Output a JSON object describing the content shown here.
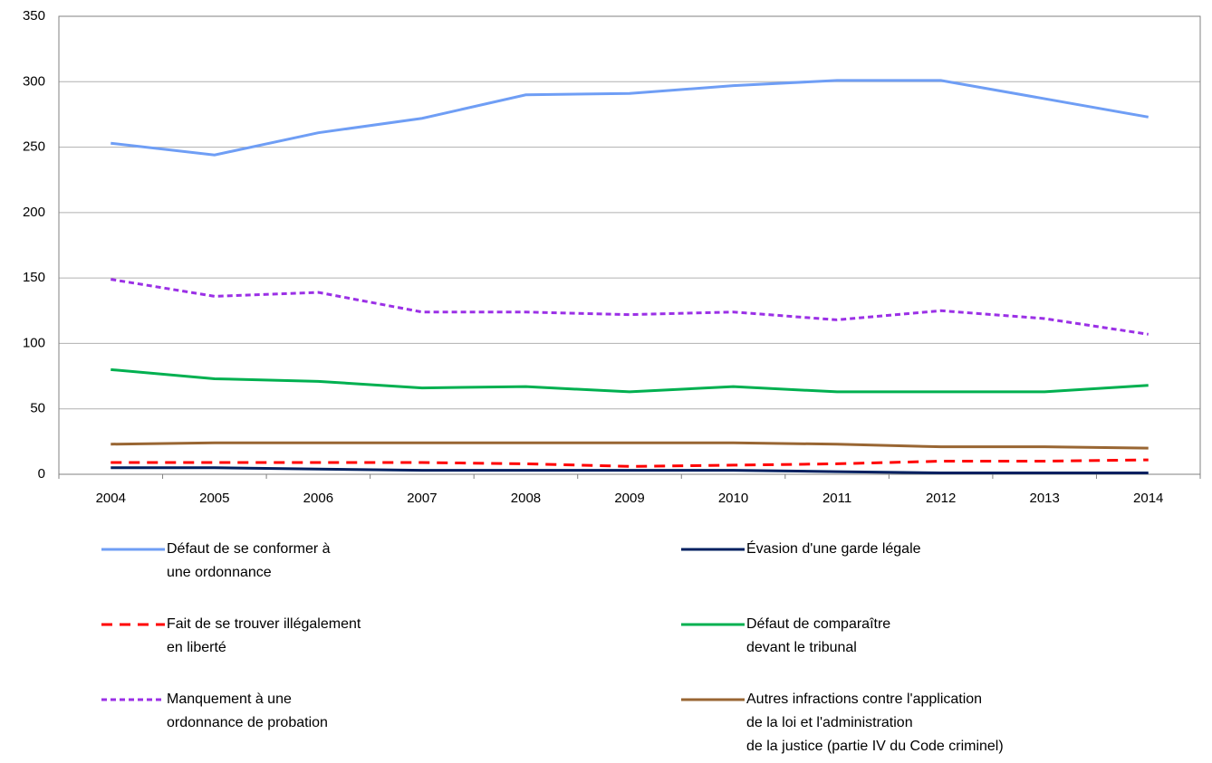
{
  "chart_data": {
    "type": "line",
    "categories": [
      "2004",
      "2005",
      "2006",
      "2007",
      "2008",
      "2009",
      "2010",
      "2011",
      "2012",
      "2013",
      "2014"
    ],
    "ylim": [
      0,
      350
    ],
    "yticks": [
      0,
      50,
      100,
      150,
      200,
      250,
      300,
      350
    ],
    "grid": true,
    "series": [
      {
        "name": "Défaut de se conformer à\nune ordonnance",
        "color": "#6f9ef5",
        "line_style": "solid",
        "values": [
          253,
          244,
          261,
          272,
          290,
          291,
          297,
          301,
          301,
          287,
          273
        ]
      },
      {
        "name": "Évasion d'une garde légale",
        "color": "#002060",
        "line_style": "solid",
        "values": [
          5,
          5,
          4,
          3,
          3,
          3,
          3,
          2,
          1,
          1,
          1
        ]
      },
      {
        "name": "Fait de se trouver illégalement\nen liberté",
        "color": "#ff0000",
        "line_style": "long-dash",
        "values": [
          9,
          9,
          9,
          9,
          8,
          6,
          7,
          8,
          10,
          10,
          11
        ]
      },
      {
        "name": "Défaut de comparaître\ndevant le tribunal",
        "color": "#00b050",
        "line_style": "solid",
        "values": [
          80,
          73,
          71,
          66,
          67,
          63,
          67,
          63,
          63,
          63,
          68
        ]
      },
      {
        "name": "Manquement à une\nordonnance de probation",
        "color": "#9b30e6",
        "line_style": "short-dash",
        "values": [
          149,
          136,
          139,
          124,
          124,
          122,
          124,
          118,
          125,
          119,
          107
        ]
      },
      {
        "name": "Autres infractions contre l'application\nde la loi et l'administration\nde la justice (partie IV du Code criminel)",
        "color": "#996633",
        "line_style": "solid",
        "values": [
          23,
          24,
          24,
          24,
          24,
          24,
          24,
          23,
          21,
          21,
          20
        ]
      }
    ]
  }
}
